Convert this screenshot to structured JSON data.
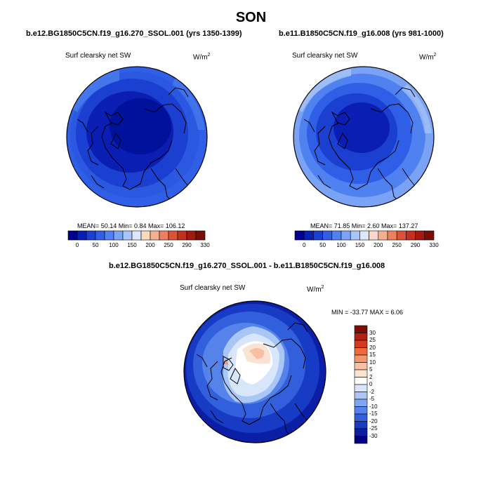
{
  "figure": {
    "season": "SON",
    "variable": "Surf clearsky net SW",
    "units_base": "W/m",
    "units_exp": "2"
  },
  "panels": [
    {
      "case": "b.e12.BG1850C5CN.f19_g16.270_SSOL.001 (yrs 1350-1399)",
      "stats_text": "MEAN=  50.14  Min=   0.84  Max= 106.12"
    },
    {
      "case": "b.e11.B1850C5CN.f19_g16.008 (yrs 981-1000)",
      "stats_text": "MEAN=  71.85  Min=   2.60  Max= 137.27"
    }
  ],
  "diff_panel": {
    "case": "b.e12.BG1850C5CN.f19_g16.270_SSOL.001 - b.e11.B1850C5CN.f19_g16.008",
    "stats_text": "MIN = -33.77 MAX =   6.06"
  },
  "colorbar_abs": {
    "colors": [
      "#00008f",
      "#0a1eb4",
      "#1a3fd1",
      "#2e5fe6",
      "#4f82f0",
      "#7aa3f5",
      "#a9c4f8",
      "#dce8fb",
      "#f9d9c6",
      "#f4b08e",
      "#ec8060",
      "#dd5237",
      "#c4301d",
      "#a11a0f",
      "#7a0e07"
    ],
    "tick_labels": [
      "0",
      "50",
      "100",
      "150",
      "200",
      "250",
      "290",
      "330"
    ]
  },
  "colorbar_diff": {
    "colors": [
      "#7a0e07",
      "#b3200f",
      "#d63a1c",
      "#ec6a3c",
      "#f4956a",
      "#f8bfa0",
      "#fbe3d3",
      "#ffffff",
      "#d8e6fb",
      "#aac6f6",
      "#7ea6f2",
      "#5583ea",
      "#3260dc",
      "#173bc4",
      "#0a1fa6",
      "#00007f"
    ],
    "tick_labels": [
      "30",
      "25",
      "20",
      "15",
      "10",
      "5",
      "2",
      "0",
      "-2",
      "-5",
      "-10",
      "-15",
      "-20",
      "-25",
      "-30"
    ]
  }
}
